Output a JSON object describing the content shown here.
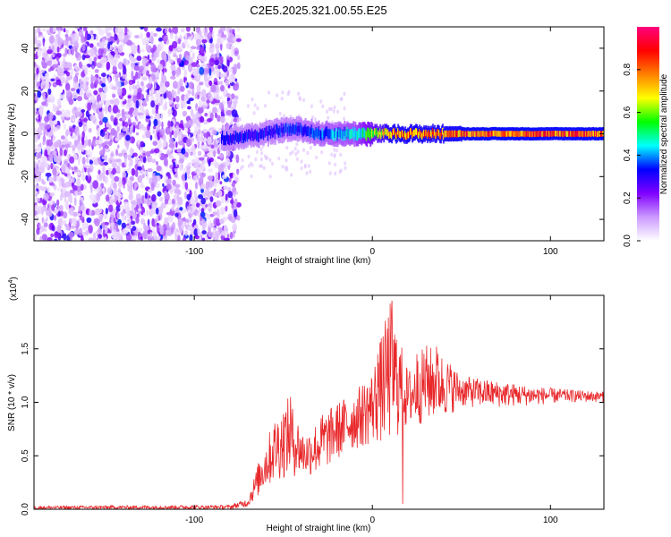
{
  "title": "C2E5.2025.321.00.55.E25",
  "chart_data": [
    {
      "type": "heatmap",
      "xlabel": "Height of straight line (km)",
      "ylabel": "Frequency (Hz)",
      "xlim": [
        -190,
        130
      ],
      "ylim": [
        -50,
        50
      ],
      "x_ticks": [
        -100,
        0,
        100
      ],
      "x_tick_labels": [
        "-100",
        "0",
        "100"
      ],
      "y_ticks": [
        -40,
        -20,
        0,
        20,
        40
      ],
      "y_tick_labels": [
        "-40",
        "-20",
        "0",
        "20",
        "40"
      ],
      "colorbar": {
        "label": "Normalized spectral amplitude",
        "range": [
          0,
          1
        ],
        "ticks": [
          0.0,
          0.2,
          0.4,
          0.6,
          0.8
        ],
        "tick_labels": [
          "0.0",
          "0.2",
          "0.4",
          "0.6",
          "0.8"
        ],
        "colors": [
          "#ffffff",
          "#cc99ff",
          "#7f00ff",
          "#0000ff",
          "#00ffff",
          "#00ff00",
          "#ffff00",
          "#ff8000",
          "#ff0000",
          "#ff0080"
        ]
      },
      "band_center_hz": [
        {
          "x": -80,
          "y": -2
        },
        {
          "x": -70,
          "y": -1
        },
        {
          "x": -60,
          "y": 0
        },
        {
          "x": -50,
          "y": 2
        },
        {
          "x": -40,
          "y": 2
        },
        {
          "x": -30,
          "y": 0
        },
        {
          "x": -20,
          "y": 0
        },
        {
          "x": -10,
          "y": 0
        },
        {
          "x": 0,
          "y": 0
        },
        {
          "x": 20,
          "y": 0
        },
        {
          "x": 40,
          "y": 0
        },
        {
          "x": 60,
          "y": 0
        },
        {
          "x": 80,
          "y": 0
        },
        {
          "x": 100,
          "y": 0
        },
        {
          "x": 130,
          "y": 0
        }
      ],
      "noise_region_x": [
        -190,
        -75
      ],
      "noise_amplitude": 0.2,
      "band_amplitude": [
        {
          "x": -80,
          "v": 0.35
        },
        {
          "x": -40,
          "v": 0.4
        },
        {
          "x": -10,
          "v": 0.5
        },
        {
          "x": 10,
          "v": 0.9
        },
        {
          "x": 40,
          "v": 0.9
        },
        {
          "x": 60,
          "v": 0.95
        },
        {
          "x": 130,
          "v": 0.95
        }
      ],
      "grid": false
    },
    {
      "type": "line",
      "xlabel": "Height of straight line (km)",
      "ylabel": "SNR (10 * v/v)",
      "y_multiplier": "(x10",
      "y_multiplier_exp": "4",
      "y_multiplier_close": ")",
      "xlim": [
        -190,
        130
      ],
      "ylim": [
        0,
        2.0
      ],
      "x_ticks": [
        -100,
        0,
        100
      ],
      "x_tick_labels": [
        "-100",
        "0",
        "100"
      ],
      "y_ticks": [
        0,
        0.5,
        1.0,
        1.5
      ],
      "y_tick_labels": [
        "0.0",
        "0.5",
        "1.0",
        "1.5"
      ],
      "color": "#e8282b",
      "envelope": [
        {
          "x": -190,
          "lo": 0.0,
          "hi": 0.03
        },
        {
          "x": -80,
          "lo": 0.0,
          "hi": 0.04
        },
        {
          "x": -70,
          "lo": 0.02,
          "hi": 0.1
        },
        {
          "x": -62,
          "lo": 0.15,
          "hi": 0.55
        },
        {
          "x": -55,
          "lo": 0.25,
          "hi": 0.85
        },
        {
          "x": -47,
          "lo": 0.3,
          "hi": 1.05
        },
        {
          "x": -38,
          "lo": 0.3,
          "hi": 0.7
        },
        {
          "x": -30,
          "lo": 0.32,
          "hi": 0.85
        },
        {
          "x": -20,
          "lo": 0.45,
          "hi": 1.0
        },
        {
          "x": -10,
          "lo": 0.55,
          "hi": 1.1
        },
        {
          "x": 0,
          "lo": 0.6,
          "hi": 1.3
        },
        {
          "x": 10,
          "lo": 0.6,
          "hi": 1.95
        },
        {
          "x": 20,
          "lo": 0.75,
          "hi": 1.3
        },
        {
          "x": 30,
          "lo": 0.8,
          "hi": 1.55
        },
        {
          "x": 40,
          "lo": 0.85,
          "hi": 1.45
        },
        {
          "x": 50,
          "lo": 0.95,
          "hi": 1.25
        },
        {
          "x": 70,
          "lo": 0.95,
          "hi": 1.2
        },
        {
          "x": 90,
          "lo": 0.97,
          "hi": 1.15
        },
        {
          "x": 110,
          "lo": 1.0,
          "hi": 1.12
        },
        {
          "x": 130,
          "lo": 1.0,
          "hi": 1.1
        }
      ],
      "peaks": [
        {
          "x": -65,
          "v": 0.22
        },
        {
          "x": -46,
          "v": 1.05
        },
        {
          "x": -28,
          "v": 0.88
        },
        {
          "x": 3,
          "v": 1.45
        },
        {
          "x": 11,
          "v": 1.95
        },
        {
          "x": 25,
          "v": 1.45
        },
        {
          "x": 36,
          "v": 1.52
        }
      ],
      "dips": [
        {
          "x": 17,
          "v": 0.05
        }
      ],
      "grid": false
    }
  ]
}
